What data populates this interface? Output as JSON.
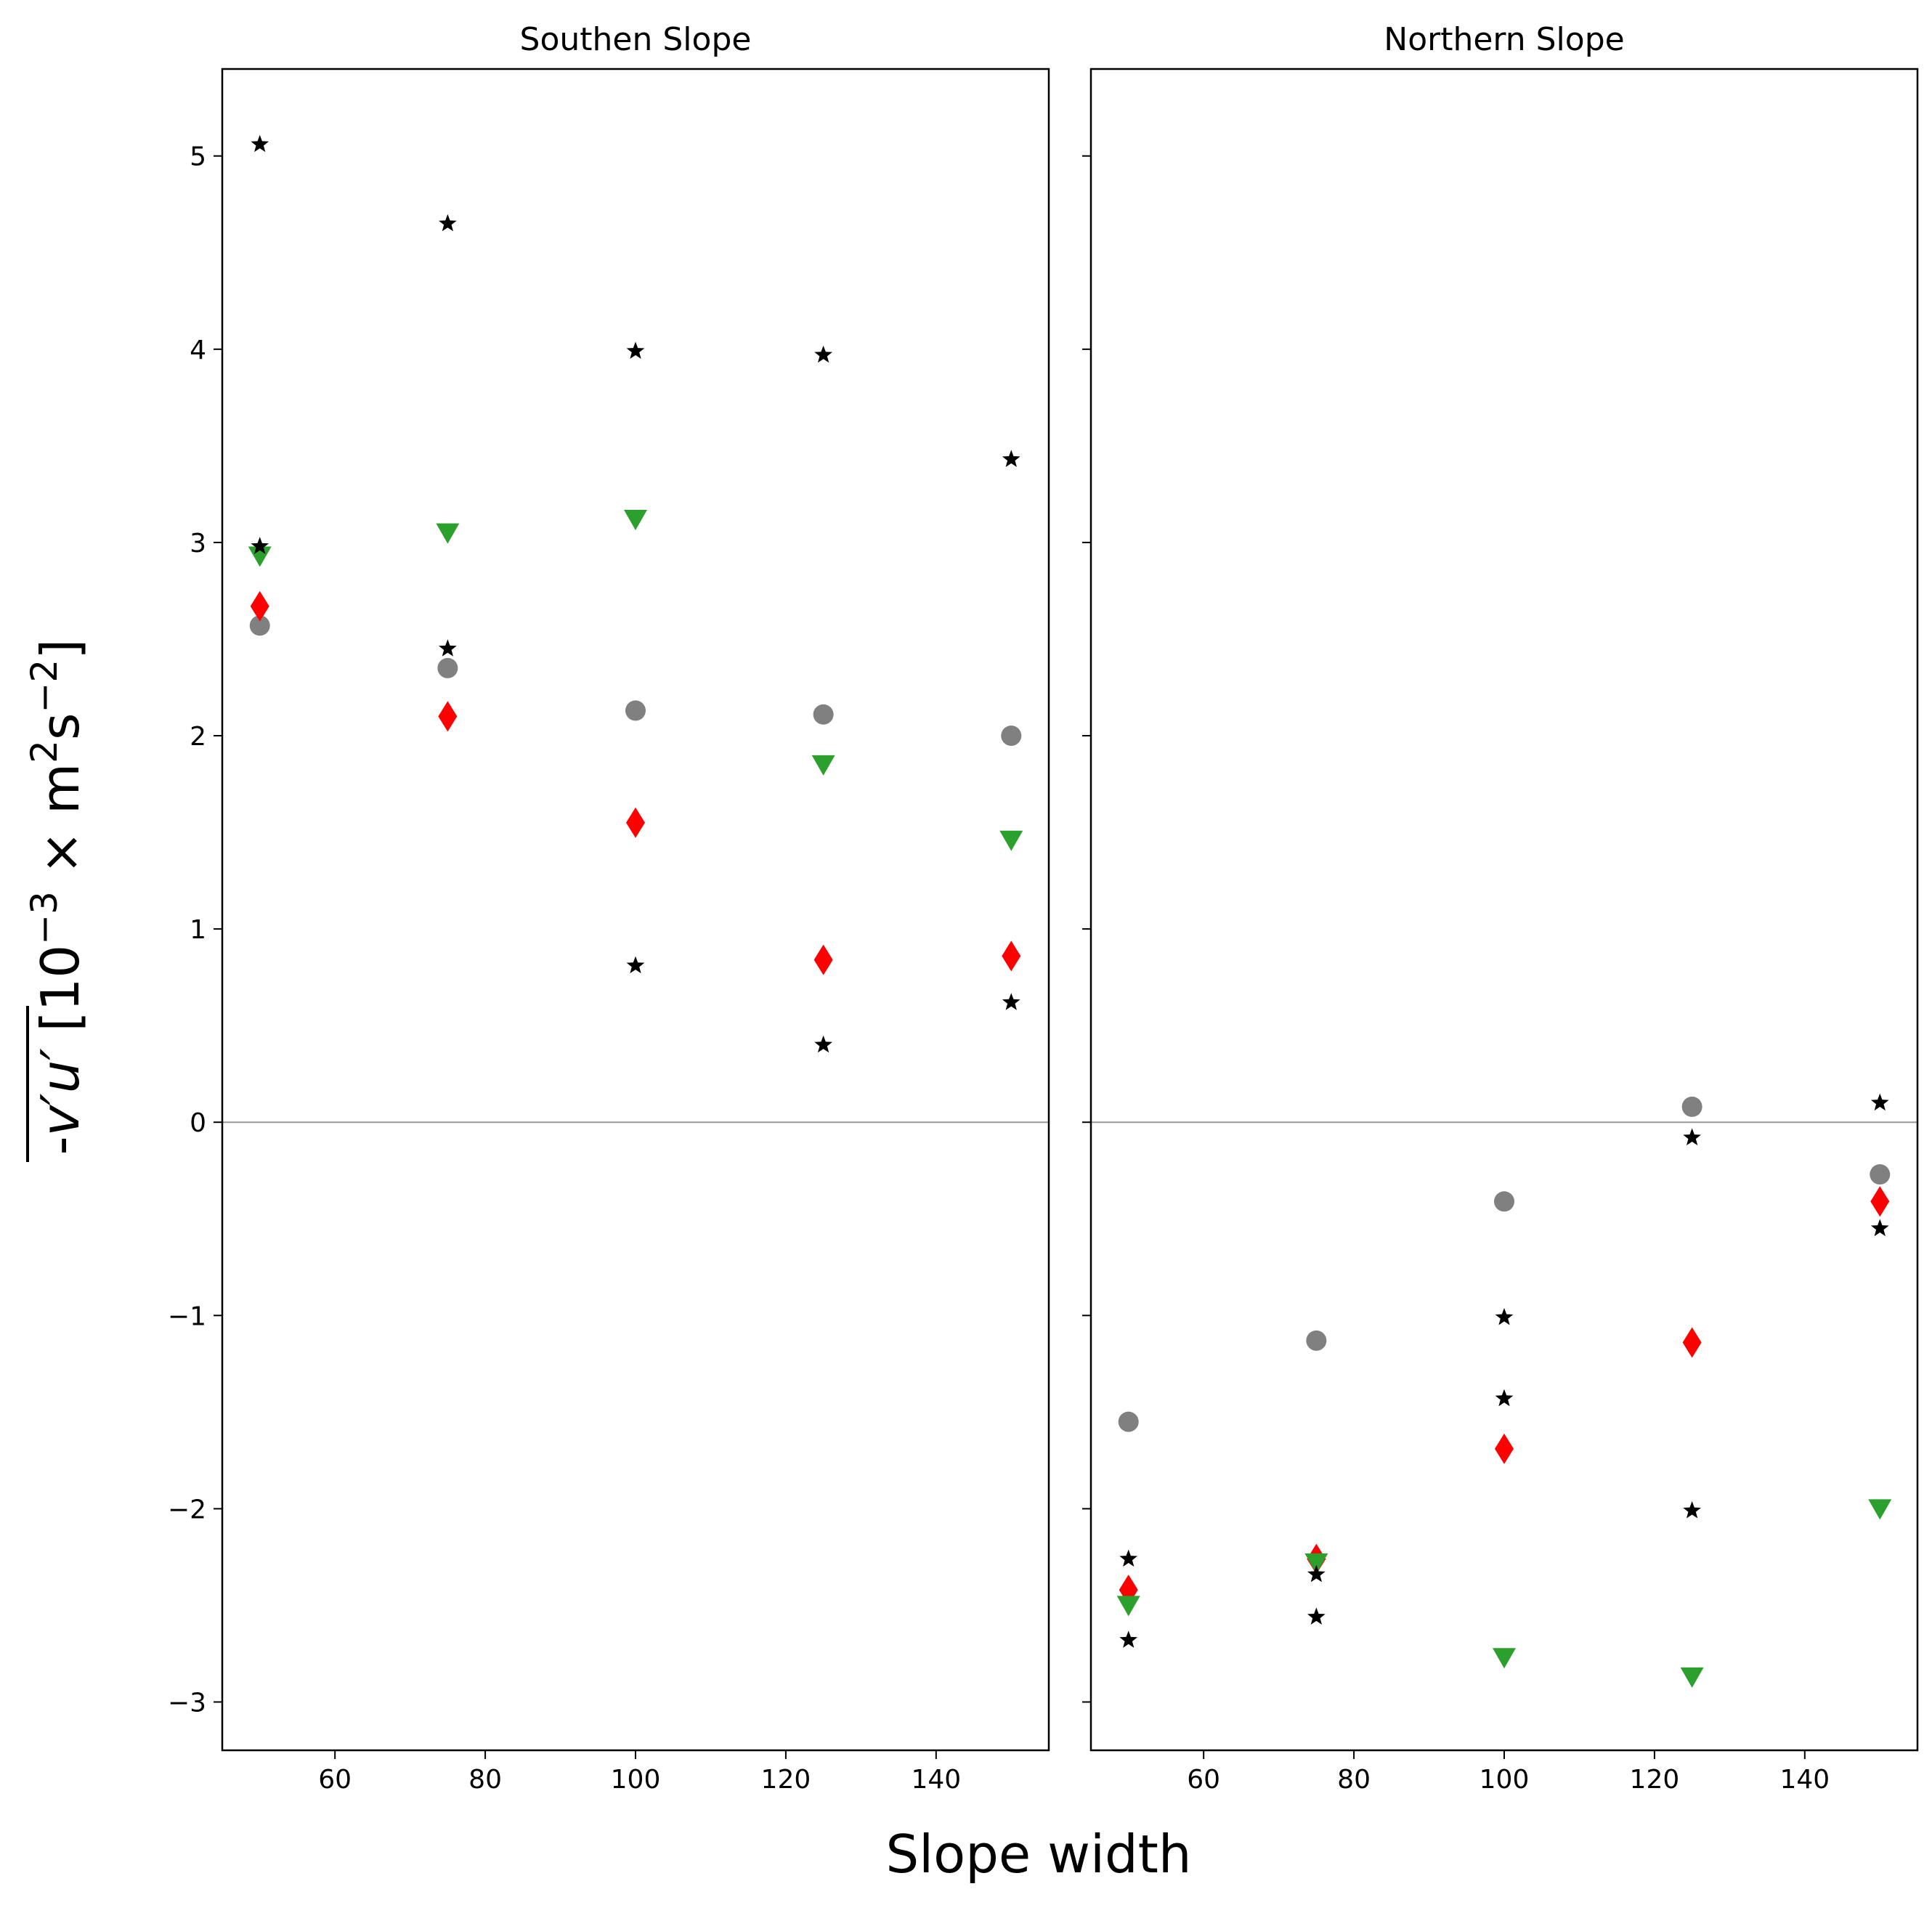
{
  "chart_data": {
    "type": "scatter",
    "xlabel": "Slope width",
    "ylabel": "-v′u′ [10⁻³ × m²s⁻²]",
    "ylabel_parts": {
      "sign": "-",
      "var": "v′u′",
      "bracket_open": "[10",
      "exp1": "−3",
      "times": " × m",
      "exp2": "2",
      "unit2": "s",
      "exp3": "−2",
      "bracket_close": "]"
    },
    "xlim": [
      45,
      155
    ],
    "ylim": [
      -3.25,
      5.45
    ],
    "xticks": [
      60,
      80,
      100,
      120,
      140
    ],
    "xtick_labels": [
      "60",
      "80",
      "100",
      "120",
      "140"
    ],
    "yticks": [
      -3,
      -2,
      -1,
      0,
      1,
      2,
      3,
      4,
      5
    ],
    "ytick_labels": [
      "−3",
      "−2",
      "−1",
      "0",
      "1",
      "2",
      "3",
      "4",
      "5"
    ],
    "zero_line": true,
    "colors": {
      "gray": "#808080",
      "red": "#ff0000",
      "green": "#2ca02c",
      "black": "#000000",
      "zero_line": "#999999"
    },
    "panels": [
      {
        "title": "Southen Slope",
        "series": [
          {
            "name": "gray circles",
            "marker": "circle",
            "color": "#808080",
            "x": [
              50,
              75,
              100,
              125,
              150
            ],
            "y": [
              2.57,
              2.35,
              2.13,
              2.11,
              2.0
            ]
          },
          {
            "name": "red diamonds",
            "marker": "diamond",
            "color": "#ff0000",
            "x": [
              50,
              75,
              100,
              125,
              150
            ],
            "y": [
              2.67,
              2.1,
              1.55,
              0.84,
              0.86
            ]
          },
          {
            "name": "green triangles",
            "marker": "triangle-down",
            "color": "#2ca02c",
            "x": [
              50,
              75,
              100,
              125,
              150
            ],
            "y": [
              2.93,
              3.05,
              3.12,
              1.85,
              1.46
            ]
          },
          {
            "name": "black stars upper",
            "marker": "star",
            "color": "#000000",
            "x": [
              50,
              75,
              100,
              125,
              150
            ],
            "y": [
              5.06,
              4.65,
              3.99,
              3.97,
              3.43
            ]
          },
          {
            "name": "black stars lower",
            "marker": "star",
            "color": "#000000",
            "x": [
              50,
              75,
              100,
              125,
              150
            ],
            "y": [
              2.98,
              2.45,
              0.81,
              0.4,
              0.62
            ]
          }
        ]
      },
      {
        "title": "Northern Slope",
        "series": [
          {
            "name": "gray circles",
            "marker": "circle",
            "color": "#808080",
            "x": [
              50,
              75,
              100,
              125,
              150
            ],
            "y": [
              -1.55,
              -1.13,
              -0.41,
              0.08,
              -0.27
            ]
          },
          {
            "name": "red diamonds",
            "marker": "diamond",
            "color": "#ff0000",
            "x": [
              50,
              75,
              100,
              125,
              150
            ],
            "y": [
              -2.42,
              -2.26,
              -1.69,
              -1.14,
              -0.41
            ]
          },
          {
            "name": "green triangles",
            "marker": "triangle-down",
            "color": "#2ca02c",
            "x": [
              50,
              75,
              100,
              125,
              150
            ],
            "y": [
              -2.5,
              -2.28,
              -2.77,
              -2.87,
              -2.0
            ]
          },
          {
            "name": "black stars upper",
            "marker": "star",
            "color": "#000000",
            "x": [
              50,
              75,
              100,
              125,
              150
            ],
            "y": [
              -2.26,
              -2.34,
              -1.01,
              -0.08,
              0.1
            ]
          },
          {
            "name": "black stars lower",
            "marker": "star",
            "color": "#000000",
            "x": [
              50,
              75,
              100,
              125,
              150
            ],
            "y": [
              -2.68,
              -2.56,
              -1.43,
              -2.01,
              -0.55
            ]
          }
        ]
      }
    ]
  }
}
